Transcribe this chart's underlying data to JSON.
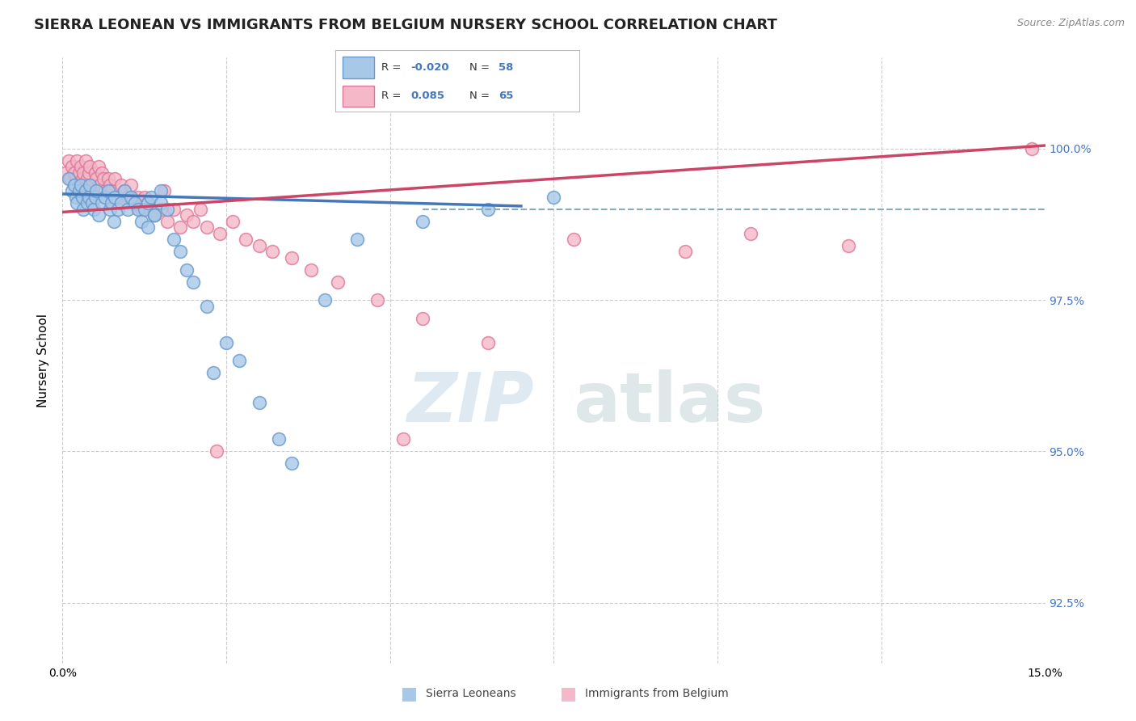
{
  "title": "SIERRA LEONEAN VS IMMIGRANTS FROM BELGIUM NURSERY SCHOOL CORRELATION CHART",
  "source": "Source: ZipAtlas.com",
  "ylabel": "Nursery School",
  "xlim": [
    0.0,
    15.0
  ],
  "ylim": [
    91.5,
    101.5
  ],
  "yticks": [
    92.5,
    95.0,
    97.5,
    100.0
  ],
  "ytick_labels": [
    "92.5%",
    "95.0%",
    "97.5%",
    "100.0%"
  ],
  "xticks": [
    0.0,
    2.5,
    5.0,
    7.5,
    10.0,
    12.5,
    15.0
  ],
  "xtick_labels": [
    "0.0%",
    "",
    "",
    "",
    "",
    "",
    "15.0%"
  ],
  "blue_scatter_x": [
    0.1,
    0.15,
    0.18,
    0.2,
    0.22,
    0.25,
    0.28,
    0.3,
    0.32,
    0.35,
    0.38,
    0.4,
    0.42,
    0.45,
    0.48,
    0.5,
    0.52,
    0.55,
    0.6,
    0.65,
    0.7,
    0.72,
    0.75,
    0.78,
    0.8,
    0.85,
    0.9,
    0.95,
    1.0,
    1.05,
    1.1,
    1.15,
    1.2,
    1.25,
    1.3,
    1.35,
    1.4,
    1.5,
    1.6,
    1.7,
    1.8,
    1.9,
    2.0,
    2.2,
    2.5,
    2.7,
    3.0,
    3.3,
    3.5,
    4.0,
    4.5,
    5.5,
    6.5,
    7.5,
    1.3,
    1.4,
    1.5,
    2.3
  ],
  "blue_scatter_y": [
    99.5,
    99.3,
    99.4,
    99.2,
    99.1,
    99.3,
    99.4,
    99.2,
    99.0,
    99.3,
    99.1,
    99.2,
    99.4,
    99.1,
    99.0,
    99.2,
    99.3,
    98.9,
    99.1,
    99.2,
    99.3,
    99.0,
    99.1,
    98.8,
    99.2,
    99.0,
    99.1,
    99.3,
    99.0,
    99.2,
    99.1,
    99.0,
    98.8,
    99.0,
    99.1,
    99.2,
    98.9,
    99.1,
    99.0,
    98.5,
    98.3,
    98.0,
    97.8,
    97.4,
    96.8,
    96.5,
    95.8,
    95.2,
    94.8,
    97.5,
    98.5,
    98.8,
    99.0,
    99.2,
    98.7,
    98.9,
    99.3,
    96.3
  ],
  "pink_scatter_x": [
    0.05,
    0.1,
    0.12,
    0.15,
    0.18,
    0.2,
    0.22,
    0.25,
    0.28,
    0.3,
    0.32,
    0.35,
    0.38,
    0.4,
    0.42,
    0.45,
    0.5,
    0.52,
    0.55,
    0.58,
    0.6,
    0.62,
    0.65,
    0.7,
    0.72,
    0.75,
    0.8,
    0.85,
    0.9,
    0.95,
    1.0,
    1.05,
    1.1,
    1.15,
    1.2,
    1.25,
    1.3,
    1.4,
    1.5,
    1.6,
    1.7,
    1.8,
    1.9,
    2.0,
    2.1,
    2.2,
    2.4,
    2.6,
    2.8,
    3.0,
    3.2,
    3.5,
    3.8,
    4.2,
    4.8,
    5.5,
    6.5,
    1.55,
    2.35,
    5.2,
    14.8,
    7.8,
    9.5,
    10.5,
    12.0
  ],
  "pink_scatter_y": [
    99.6,
    99.8,
    99.5,
    99.7,
    99.6,
    99.5,
    99.8,
    99.6,
    99.7,
    99.5,
    99.6,
    99.8,
    99.5,
    99.6,
    99.7,
    99.4,
    99.6,
    99.5,
    99.7,
    99.4,
    99.6,
    99.5,
    99.3,
    99.5,
    99.4,
    99.3,
    99.5,
    99.2,
    99.4,
    99.3,
    99.2,
    99.4,
    99.1,
    99.2,
    99.0,
    99.2,
    99.1,
    98.9,
    99.0,
    98.8,
    99.0,
    98.7,
    98.9,
    98.8,
    99.0,
    98.7,
    98.6,
    98.8,
    98.5,
    98.4,
    98.3,
    98.2,
    98.0,
    97.8,
    97.5,
    97.2,
    96.8,
    99.3,
    95.0,
    95.2,
    100.0,
    98.5,
    98.3,
    98.6,
    98.4
  ],
  "blue_trend_x": [
    0.0,
    7.0
  ],
  "blue_trend_y": [
    99.25,
    99.05
  ],
  "pink_trend_x": [
    0.0,
    15.0
  ],
  "pink_trend_y": [
    98.95,
    100.05
  ],
  "dashed_line_y": 99.0,
  "dashed_line_x_start": 5.5,
  "dashed_line_x_end": 15.0,
  "watermark_zip": "ZIP",
  "watermark_atlas": "atlas",
  "background_color": "#ffffff",
  "grid_color": "#cccccc",
  "blue_color": "#a8c8e8",
  "blue_edge": "#6699cc",
  "pink_color": "#f5b8c8",
  "pink_edge": "#dd7799",
  "blue_trend_color": "#4477bb",
  "pink_trend_color": "#cc4466",
  "dashed_color": "#88aabb",
  "title_fontsize": 13,
  "axis_label_fontsize": 11,
  "tick_fontsize": 10,
  "right_tick_color": "#4477cc",
  "legend_R_color_blue": "-0.020",
  "legend_N_blue": "58",
  "legend_R_color_pink": "0.085",
  "legend_N_pink": "65"
}
